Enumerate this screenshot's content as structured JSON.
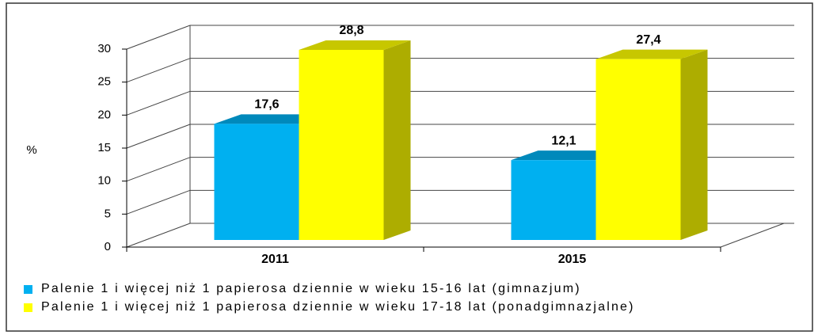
{
  "chart_data": {
    "type": "bar3d",
    "categories": [
      "2011",
      "2015"
    ],
    "series": [
      {
        "name": "Palenie 1 i więcej niż 1 papierosa dziennie w wieku 15-16 lat (gimnazjum)",
        "color": "#00b0f0",
        "values": [
          17.6,
          12.1
        ],
        "value_labels": [
          "17,6",
          "12,1"
        ]
      },
      {
        "name": "Palenie 1 i więcej niż 1 papierosa dziennie w wieku 17-18 lat (ponadgimnazjalne)",
        "color": "#ffff00",
        "values": [
          28.8,
          27.4
        ],
        "value_labels": [
          "28,8",
          "27,4"
        ]
      }
    ],
    "ylabel": "%",
    "ylim": [
      0,
      30
    ],
    "yticks": [
      0,
      5,
      10,
      15,
      20,
      25,
      30
    ],
    "grid": true
  }
}
